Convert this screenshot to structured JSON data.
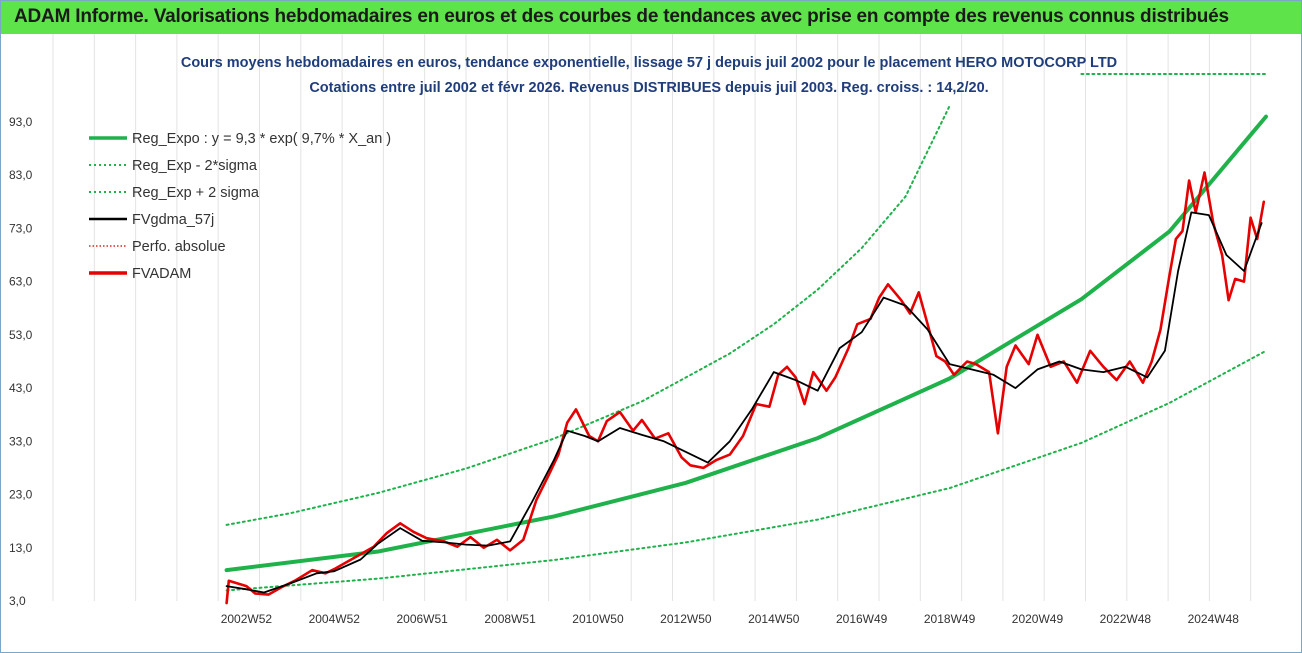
{
  "banner": {
    "title": "ADAM Informe. Valorisations hebdomadaires en euros et des courbes de tendances avec prise en compte des revenus connus distribués",
    "background": "#5ee34a"
  },
  "chart_data": {
    "type": "line",
    "title": "Cours moyens hebdomadaires en euros, tendance exponentielle, lissage 57 j depuis juil 2002 pour le placement HERO MOTOCORP LTD",
    "subtitle": "Cotations entre juil 2002 et févr 2026.  Revenus DISTRIBUES depuis juil 2003.  Reg. croiss. : 14,2/20.",
    "xlabel": "",
    "ylabel": "",
    "x_range": [
      1998.6,
      2026.2
    ],
    "ylim": [
      3.0,
      102.0
    ],
    "y_ticks": [
      "3,0",
      "13,0",
      "23,0",
      "33,0",
      "43,0",
      "53,0",
      "63,0",
      "73,0",
      "83,0",
      "93,0"
    ],
    "x_ticks": [
      {
        "label": "2002W52",
        "x": 2003.0
      },
      {
        "label": "2004W52",
        "x": 2005.0
      },
      {
        "label": "2006W51",
        "x": 2007.0
      },
      {
        "label": "2008W51",
        "x": 2009.0
      },
      {
        "label": "2010W50",
        "x": 2011.0
      },
      {
        "label": "2012W50",
        "x": 2013.0
      },
      {
        "label": "2014W50",
        "x": 2015.0
      },
      {
        "label": "2016W49",
        "x": 2017.0
      },
      {
        "label": "2018W49",
        "x": 2019.0
      },
      {
        "label": "2020W49",
        "x": 2021.0
      },
      {
        "label": "2022W48",
        "x": 2023.0
      },
      {
        "label": "2024W48",
        "x": 2025.0
      }
    ],
    "grid": "vertical",
    "legend_position": "top-left",
    "series": [
      {
        "name": "Reg_Expo : y = 9,3 * exp( 9,7% *  X_an )",
        "color": "#1fb24a",
        "style": "solid-thick",
        "x": [
          2002.55,
          2006.0,
          2010.0,
          2013.0,
          2016.0,
          2019.0,
          2022.0,
          2024.0,
          2026.2
        ],
        "y": [
          8.8,
          12.3,
          18.9,
          25.2,
          33.6,
          44.8,
          59.7,
          72.4,
          94.0
        ]
      },
      {
        "name": "Reg_Exp - 2*sigma",
        "color": "#1fb24a",
        "style": "dotted",
        "x": [
          2002.55,
          2006.0,
          2010.0,
          2013.0,
          2016.0,
          2019.0,
          2022.0,
          2024.0,
          2026.2
        ],
        "y": [
          5.0,
          7.2,
          10.7,
          14.0,
          18.3,
          24.2,
          32.7,
          40.2,
          50.0
        ]
      },
      {
        "name": "Reg_Exp + 2 sigma",
        "color": "#1fb24a",
        "style": "dotted",
        "x": [
          2002.55,
          2004.0,
          2006.0,
          2008.0,
          2010.0,
          2012.0,
          2014.0,
          2015.0,
          2016.0,
          2017.0,
          2018.0,
          2019.0
        ],
        "y": [
          17.3,
          19.5,
          23.3,
          27.9,
          33.5,
          40.5,
          49.5,
          55.0,
          61.5,
          69.3,
          79.0,
          96.0
        ],
        "flat_segment": {
          "x": [
            2022.0,
            2026.2
          ],
          "y": [
            102.0,
            102.0
          ]
        }
      },
      {
        "name": "FVgdma_57j",
        "color": "#000000",
        "style": "solid",
        "x": [
          2002.55,
          2003.0,
          2003.4,
          2004.0,
          2004.6,
          2005.0,
          2005.6,
          2006.0,
          2006.5,
          2007.0,
          2007.5,
          2008.0,
          2008.5,
          2009.0,
          2009.5,
          2010.0,
          2010.3,
          2010.7,
          2011.0,
          2011.5,
          2012.0,
          2012.5,
          2013.0,
          2013.5,
          2014.0,
          2014.5,
          2015.0,
          2015.5,
          2016.0,
          2016.5,
          2017.0,
          2017.5,
          2018.0,
          2018.5,
          2019.0,
          2019.5,
          2020.0,
          2020.5,
          2021.0,
          2021.5,
          2022.0,
          2022.5,
          2023.0,
          2023.5,
          2023.9,
          2024.2,
          2024.5,
          2024.9,
          2025.3,
          2025.7,
          2026.1
        ],
        "y": [
          5.8,
          5.2,
          4.6,
          6.3,
          8.2,
          8.6,
          10.8,
          13.8,
          16.7,
          14.3,
          14.0,
          13.6,
          13.4,
          14.2,
          21.6,
          29.5,
          35.0,
          34.0,
          33.0,
          35.5,
          34.2,
          33.0,
          31.0,
          29.0,
          33.0,
          39.0,
          46.0,
          44.5,
          42.5,
          50.5,
          53.5,
          60.0,
          58.5,
          54.0,
          47.5,
          46.5,
          45.5,
          43.0,
          46.5,
          48.0,
          46.5,
          46.0,
          47.0,
          45.0,
          50.0,
          65.0,
          76.0,
          75.5,
          68.0,
          65.0,
          74.0
        ]
      },
      {
        "name": "Perfo. absolue",
        "color": "#e02020",
        "style": "dotted",
        "x": [],
        "y": []
      },
      {
        "name": "FVADAM",
        "color": "#e60000",
        "style": "solid-thick",
        "x": [
          2002.55,
          2002.6,
          2003.0,
          2003.2,
          2003.5,
          2003.8,
          2004.1,
          2004.5,
          2004.8,
          2005.0,
          2005.3,
          2005.6,
          2005.9,
          2006.2,
          2006.5,
          2006.8,
          2007.1,
          2007.5,
          2007.8,
          2008.1,
          2008.4,
          2008.7,
          2009.0,
          2009.3,
          2009.6,
          2009.9,
          2010.1,
          2010.3,
          2010.5,
          2010.8,
          2011.0,
          2011.2,
          2011.5,
          2011.8,
          2012.0,
          2012.3,
          2012.6,
          2012.9,
          2013.1,
          2013.4,
          2013.7,
          2014.0,
          2014.3,
          2014.6,
          2014.9,
          2015.1,
          2015.3,
          2015.5,
          2015.7,
          2015.9,
          2016.2,
          2016.4,
          2016.7,
          2016.9,
          2017.2,
          2017.4,
          2017.6,
          2017.9,
          2018.1,
          2018.3,
          2018.5,
          2018.7,
          2018.9,
          2019.1,
          2019.4,
          2019.6,
          2019.9,
          2020.1,
          2020.3,
          2020.5,
          2020.8,
          2021.0,
          2021.3,
          2021.6,
          2021.9,
          2022.2,
          2022.5,
          2022.8,
          2023.1,
          2023.4,
          2023.6,
          2023.8,
          2024.0,
          2024.15,
          2024.3,
          2024.45,
          2024.6,
          2024.8,
          2025.0,
          2025.2,
          2025.35,
          2025.5,
          2025.7,
          2025.85,
          2026.0,
          2026.15
        ],
        "y": [
          2.6,
          6.8,
          5.8,
          4.4,
          4.2,
          5.6,
          6.8,
          8.8,
          8.2,
          9.0,
          10.4,
          11.8,
          13.2,
          15.8,
          17.6,
          16.0,
          14.8,
          14.2,
          13.2,
          15.0,
          13.0,
          14.5,
          12.5,
          14.5,
          22.0,
          27.0,
          30.5,
          36.5,
          39.0,
          34.0,
          33.0,
          36.8,
          38.5,
          35.0,
          37.0,
          33.5,
          34.5,
          30.0,
          28.5,
          28.0,
          29.5,
          30.5,
          34.0,
          40.0,
          39.5,
          45.5,
          47.0,
          45.0,
          40.0,
          46.0,
          42.5,
          45.0,
          50.5,
          55.0,
          56.0,
          60.0,
          62.5,
          59.5,
          57.0,
          61.0,
          55.0,
          49.0,
          48.0,
          45.5,
          48.0,
          47.5,
          46.0,
          34.5,
          47.0,
          51.0,
          47.5,
          53.0,
          47.0,
          48.0,
          44.0,
          50.0,
          47.0,
          44.5,
          48.0,
          44.0,
          48.0,
          54.0,
          64.0,
          71.0,
          72.5,
          82.0,
          76.0,
          83.5,
          74.0,
          68.0,
          59.5,
          63.5,
          63.0,
          75.0,
          71.0,
          78.0
        ]
      }
    ]
  }
}
